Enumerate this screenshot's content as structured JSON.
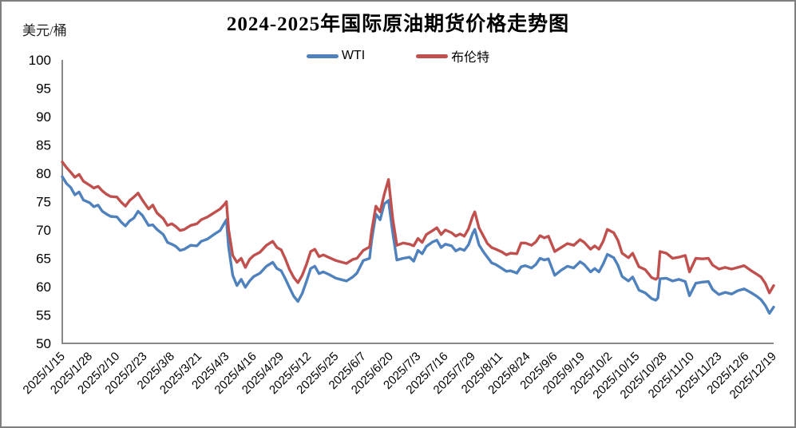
{
  "header": {
    "title": "2024-2025年国际原油期货价格走势图",
    "unit_label": "美元/桶"
  },
  "legend": {
    "items": [
      {
        "label": "WTI"
      },
      {
        "label": "布伦特"
      }
    ]
  },
  "chart_data": {
    "type": "line",
    "title": "2024-2025年国际原油期货价格走势图",
    "ylabel": "美元/桶",
    "ylim": [
      50,
      100
    ],
    "y_ticks": [
      100,
      95,
      90,
      85,
      80,
      75,
      70,
      65,
      60,
      55,
      50
    ],
    "grid": false,
    "legend_position": "top",
    "x_label_rotation": -45,
    "x_tick_interval_days": 13,
    "x_tick_labels": [
      "2025/1/15",
      "2025/1/28",
      "2025/2/10",
      "2025/2/23",
      "2025/3/8",
      "2025/3/21",
      "2025/4/3",
      "2025/4/16",
      "2025/4/29",
      "2025/5/12",
      "2025/5/25",
      "2025/6/7",
      "2025/6/20",
      "2025/7/3",
      "2025/7/16",
      "2025/7/29",
      "2025/8/11",
      "2025/8/24",
      "2025/9/6",
      "2025/9/19",
      "2025/10/2",
      "2025/10/15",
      "2025/10/28",
      "2025/11/10",
      "2025/11/23",
      "2025/12/6",
      "2025/12/19"
    ],
    "x_days": [
      0,
      2,
      4,
      6,
      8,
      10,
      13,
      15,
      17,
      19,
      21,
      23,
      26,
      28,
      30,
      32,
      34,
      36,
      38,
      41,
      43,
      45,
      48,
      50,
      52,
      54,
      56,
      58,
      61,
      64,
      66,
      69,
      72,
      75,
      77,
      78,
      79,
      81,
      83,
      85,
      87,
      89,
      91,
      94,
      97,
      100,
      102,
      104,
      106,
      108,
      110,
      112,
      114,
      116,
      118,
      120,
      122,
      124,
      127,
      130,
      132,
      135,
      138,
      140,
      143,
      146,
      147,
      149,
      151,
      153,
      155,
      157,
      159,
      162,
      165,
      167,
      169,
      171,
      173,
      176,
      178,
      180,
      182,
      185,
      187,
      189,
      191,
      193,
      195,
      196,
      198,
      200,
      202,
      204,
      206,
      209,
      211,
      213,
      216,
      218,
      220,
      223,
      225,
      227,
      229,
      231,
      234,
      237,
      240,
      243,
      246,
      248,
      251,
      253,
      255,
      257,
      259,
      262,
      264,
      266,
      269,
      271,
      274,
      277,
      280,
      282,
      283,
      284,
      287,
      290,
      293,
      296,
      298,
      301,
      304,
      307,
      309,
      312,
      315,
      318,
      321,
      324,
      327,
      330,
      332,
      334,
      336,
      338
    ],
    "series": [
      {
        "name": "WTI",
        "color": "#4F81BD",
        "data_name": "wti-line",
        "values": [
          79.4,
          78.2,
          77.5,
          76.2,
          76.7,
          75.3,
          74.8,
          74.1,
          74.4,
          73.3,
          72.8,
          72.4,
          72.3,
          71.4,
          70.7,
          71.6,
          72.1,
          73.3,
          72.6,
          70.8,
          70.9,
          70.1,
          69.2,
          67.8,
          67.5,
          67.1,
          66.4,
          66.6,
          67.3,
          67.2,
          68.0,
          68.4,
          69.2,
          69.9,
          71.2,
          71.8,
          67.0,
          62.0,
          60.2,
          61.3,
          59.9,
          61.0,
          61.8,
          62.4,
          63.6,
          64.3,
          63.2,
          62.8,
          61.4,
          59.8,
          58.3,
          57.4,
          58.8,
          60.9,
          63.2,
          63.6,
          62.3,
          62.6,
          62.1,
          61.5,
          61.3,
          61.0,
          61.7,
          62.4,
          64.6,
          65.0,
          68.2,
          72.8,
          71.8,
          74.6,
          75.2,
          69.5,
          64.7,
          65.0,
          65.2,
          64.5,
          66.4,
          65.8,
          67.1,
          67.9,
          68.2,
          66.9,
          67.5,
          67.2,
          66.3,
          66.7,
          66.4,
          67.4,
          69.4,
          70.1,
          67.4,
          66.2,
          65.2,
          64.2,
          63.9,
          63.2,
          62.7,
          62.8,
          62.4,
          63.5,
          63.7,
          63.3,
          63.9,
          65.0,
          64.7,
          64.9,
          62.0,
          62.9,
          63.6,
          63.3,
          64.4,
          63.9,
          62.6,
          63.2,
          62.6,
          64.0,
          65.7,
          65.1,
          63.8,
          61.8,
          61.0,
          61.7,
          59.4,
          58.9,
          57.9,
          57.6,
          58.0,
          61.4,
          61.5,
          61.0,
          61.3,
          60.9,
          58.4,
          60.6,
          60.8,
          60.9,
          59.5,
          58.6,
          59.0,
          58.7,
          59.3,
          59.6,
          59.0,
          58.3,
          57.7,
          56.7,
          55.3,
          56.4
        ]
      },
      {
        "name": "布伦特",
        "color": "#C0504D",
        "data_name": "brent-line",
        "values": [
          82.0,
          81.0,
          80.2,
          79.3,
          79.8,
          78.6,
          77.9,
          77.4,
          77.7,
          76.9,
          76.3,
          75.9,
          75.8,
          74.9,
          74.2,
          75.2,
          75.8,
          76.5,
          75.3,
          73.7,
          74.4,
          73.0,
          72.0,
          70.8,
          71.1,
          70.6,
          69.9,
          70.1,
          70.8,
          71.1,
          71.8,
          72.3,
          73.0,
          73.7,
          74.5,
          75.0,
          70.1,
          65.5,
          64.3,
          65.0,
          63.4,
          64.8,
          65.5,
          66.1,
          67.3,
          68.0,
          66.9,
          66.5,
          64.9,
          63.0,
          61.6,
          60.7,
          62.0,
          63.9,
          66.2,
          66.6,
          65.3,
          65.6,
          65.1,
          64.6,
          64.4,
          64.1,
          64.8,
          65.0,
          66.4,
          67.0,
          69.8,
          74.2,
          73.2,
          76.3,
          78.9,
          72.0,
          67.3,
          67.7,
          67.5,
          67.2,
          68.5,
          67.8,
          69.2,
          69.9,
          70.4,
          69.2,
          70.0,
          69.5,
          68.9,
          69.3,
          68.9,
          70.2,
          72.4,
          73.2,
          70.4,
          69.0,
          67.6,
          66.9,
          66.6,
          66.1,
          65.6,
          65.9,
          65.8,
          67.7,
          67.7,
          67.3,
          67.9,
          69.0,
          68.6,
          68.9,
          66.2,
          66.9,
          67.6,
          67.3,
          68.3,
          67.8,
          66.6,
          67.2,
          66.6,
          68.0,
          70.1,
          69.5,
          68.2,
          65.9,
          65.1,
          65.9,
          63.5,
          63.0,
          61.6,
          61.3,
          61.6,
          66.2,
          65.9,
          65.0,
          65.2,
          65.5,
          62.6,
          65.0,
          64.9,
          65.0,
          63.8,
          63.1,
          63.4,
          63.1,
          63.4,
          63.7,
          62.9,
          62.2,
          61.7,
          60.6,
          58.9,
          60.2
        ]
      }
    ]
  }
}
